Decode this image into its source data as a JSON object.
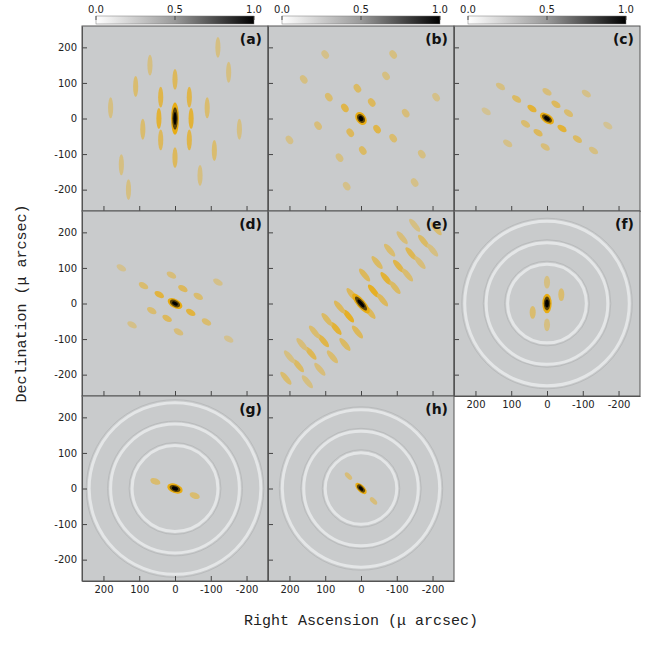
{
  "chart_data": {
    "type": "image",
    "xlabel": "Right Ascension (μ arcsec)",
    "ylabel": "Declination (μ arcsec)",
    "xlim": [
      260,
      -260
    ],
    "ylim": [
      -260,
      260
    ],
    "xticks": [
      200,
      100,
      0,
      -100,
      -200
    ],
    "yticks": [
      -200,
      -100,
      0,
      100,
      200
    ],
    "colorbar": {
      "range": [
        0,
        1
      ],
      "ticks": [
        {
          "value": 0,
          "label": "0.0"
        },
        {
          "value": 0.5,
          "label": "0.5"
        },
        {
          "value": 1,
          "label": "1.0"
        }
      ]
    },
    "panels": [
      {
        "label": "(a)",
        "beam": {
          "major": 90,
          "minor": 22,
          "pa": 0
        },
        "rings": [],
        "features": [
          {
            "x": -40,
            "y": 60,
            "value": 0.35
          },
          {
            "x": 40,
            "y": 60,
            "value": 0.35
          },
          {
            "x": -40,
            "y": -60,
            "value": 0.35
          },
          {
            "x": 40,
            "y": -60,
            "value": 0.3
          },
          {
            "x": -45,
            "y": 0,
            "value": 0.4
          },
          {
            "x": 45,
            "y": 0,
            "value": 0.4
          },
          {
            "x": 0,
            "y": 110,
            "value": 0.3
          },
          {
            "x": 0,
            "y": -110,
            "value": 0.3
          },
          {
            "x": -90,
            "y": 30,
            "value": 0.25
          },
          {
            "x": 90,
            "y": -30,
            "value": 0.25
          },
          {
            "x": -110,
            "y": -90,
            "value": 0.25
          },
          {
            "x": 110,
            "y": 90,
            "value": 0.25
          },
          {
            "x": -150,
            "y": 130,
            "value": 0.2
          },
          {
            "x": 150,
            "y": -130,
            "value": 0.2
          },
          {
            "x": 70,
            "y": 150,
            "value": 0.2
          },
          {
            "x": -70,
            "y": -160,
            "value": 0.2
          },
          {
            "x": 180,
            "y": 30,
            "value": 0.2
          },
          {
            "x": -180,
            "y": -30,
            "value": 0.2
          },
          {
            "x": -120,
            "y": 200,
            "value": 0.2
          },
          {
            "x": 130,
            "y": -200,
            "value": 0.2
          }
        ]
      },
      {
        "label": "(b)",
        "beam": {
          "major": 40,
          "minor": 28,
          "pa": 35
        },
        "rings": [],
        "features": [
          {
            "x": 45,
            "y": 30,
            "value": 0.35
          },
          {
            "x": -45,
            "y": -30,
            "value": 0.35
          },
          {
            "x": 30,
            "y": -40,
            "value": 0.3
          },
          {
            "x": -30,
            "y": 45,
            "value": 0.3
          },
          {
            "x": 90,
            "y": 60,
            "value": 0.25
          },
          {
            "x": -90,
            "y": -55,
            "value": 0.25
          },
          {
            "x": 10,
            "y": 85,
            "value": 0.28
          },
          {
            "x": -5,
            "y": -90,
            "value": 0.28
          },
          {
            "x": 120,
            "y": -20,
            "value": 0.22
          },
          {
            "x": -125,
            "y": 15,
            "value": 0.22
          },
          {
            "x": 60,
            "y": -110,
            "value": 0.2
          },
          {
            "x": -70,
            "y": 120,
            "value": 0.2
          },
          {
            "x": 160,
            "y": 110,
            "value": 0.2
          },
          {
            "x": -170,
            "y": -100,
            "value": 0.2
          },
          {
            "x": 200,
            "y": -60,
            "value": 0.18
          },
          {
            "x": -90,
            "y": 180,
            "value": 0.2
          },
          {
            "x": 100,
            "y": 180,
            "value": 0.18
          },
          {
            "x": -150,
            "y": -180,
            "value": 0.18
          },
          {
            "x": 40,
            "y": -190,
            "value": 0.18
          },
          {
            "x": -210,
            "y": 60,
            "value": 0.18
          }
        ]
      },
      {
        "label": "(c)",
        "beam": {
          "major": 45,
          "minor": 25,
          "pa": 55
        },
        "rings": [],
        "features": [
          {
            "x": 42,
            "y": 28,
            "value": 0.4
          },
          {
            "x": -42,
            "y": -28,
            "value": 0.4
          },
          {
            "x": 25,
            "y": -40,
            "value": 0.3
          },
          {
            "x": -25,
            "y": 40,
            "value": 0.3
          },
          {
            "x": 85,
            "y": 55,
            "value": 0.28
          },
          {
            "x": -85,
            "y": -58,
            "value": 0.28
          },
          {
            "x": 60,
            "y": -15,
            "value": 0.25
          },
          {
            "x": -60,
            "y": 15,
            "value": 0.25
          },
          {
            "x": 0,
            "y": 75,
            "value": 0.22
          },
          {
            "x": 5,
            "y": -80,
            "value": 0.22
          },
          {
            "x": 130,
            "y": 90,
            "value": 0.2
          },
          {
            "x": -130,
            "y": -90,
            "value": 0.2
          },
          {
            "x": 110,
            "y": -70,
            "value": 0.18
          },
          {
            "x": -110,
            "y": 70,
            "value": 0.18
          },
          {
            "x": 170,
            "y": 20,
            "value": 0.15
          },
          {
            "x": -170,
            "y": -20,
            "value": 0.15
          }
        ]
      },
      {
        "label": "(d)",
        "beam": {
          "major": 45,
          "minor": 25,
          "pa": 60
        },
        "rings": [],
        "features": [
          {
            "x": 44,
            "y": 25,
            "value": 0.38
          },
          {
            "x": -44,
            "y": -25,
            "value": 0.38
          },
          {
            "x": 22,
            "y": -42,
            "value": 0.3
          },
          {
            "x": -22,
            "y": 42,
            "value": 0.3
          },
          {
            "x": 88,
            "y": 50,
            "value": 0.25
          },
          {
            "x": -88,
            "y": -52,
            "value": 0.25
          },
          {
            "x": 65,
            "y": -20,
            "value": 0.25
          },
          {
            "x": -65,
            "y": 20,
            "value": 0.25
          },
          {
            "x": 10,
            "y": 80,
            "value": 0.22
          },
          {
            "x": -10,
            "y": -80,
            "value": 0.22
          },
          {
            "x": 120,
            "y": -60,
            "value": 0.18
          },
          {
            "x": -120,
            "y": 60,
            "value": 0.18
          },
          {
            "x": 150,
            "y": 100,
            "value": 0.16
          },
          {
            "x": -150,
            "y": -100,
            "value": 0.16
          }
        ]
      },
      {
        "label": "(e)",
        "beam": {
          "major": 70,
          "minor": 24,
          "pa": 40
        },
        "rings": [],
        "features": [
          {
            "x": -35,
            "y": 35,
            "value": 0.45
          },
          {
            "x": 35,
            "y": -35,
            "value": 0.45
          },
          {
            "x": -70,
            "y": 70,
            "value": 0.4
          },
          {
            "x": 70,
            "y": -70,
            "value": 0.4
          },
          {
            "x": -105,
            "y": 105,
            "value": 0.35
          },
          {
            "x": 105,
            "y": -105,
            "value": 0.35
          },
          {
            "x": -140,
            "y": 140,
            "value": 0.32
          },
          {
            "x": 140,
            "y": -140,
            "value": 0.32
          },
          {
            "x": -175,
            "y": 175,
            "value": 0.28
          },
          {
            "x": 175,
            "y": -175,
            "value": 0.28
          },
          {
            "x": -210,
            "y": 210,
            "value": 0.25
          },
          {
            "x": 210,
            "y": -210,
            "value": 0.25
          },
          {
            "x": 25,
            "y": 25,
            "value": 0.3
          },
          {
            "x": -25,
            "y": -25,
            "value": 0.3
          },
          {
            "x": -10,
            "y": 80,
            "value": 0.3
          },
          {
            "x": 10,
            "y": -80,
            "value": 0.3
          },
          {
            "x": -45,
            "y": 115,
            "value": 0.28
          },
          {
            "x": 45,
            "y": -115,
            "value": 0.28
          },
          {
            "x": -80,
            "y": 150,
            "value": 0.25
          },
          {
            "x": 80,
            "y": -150,
            "value": 0.25
          },
          {
            "x": -115,
            "y": 185,
            "value": 0.22
          },
          {
            "x": 115,
            "y": -185,
            "value": 0.22
          },
          {
            "x": -150,
            "y": 220,
            "value": 0.2
          },
          {
            "x": 150,
            "y": -220,
            "value": 0.2
          },
          {
            "x": -60,
            "y": 10,
            "value": 0.3
          },
          {
            "x": 60,
            "y": -10,
            "value": 0.3
          },
          {
            "x": -95,
            "y": 45,
            "value": 0.28
          },
          {
            "x": 95,
            "y": -45,
            "value": 0.28
          },
          {
            "x": -130,
            "y": 80,
            "value": 0.25
          },
          {
            "x": 130,
            "y": -80,
            "value": 0.25
          },
          {
            "x": -165,
            "y": 115,
            "value": 0.22
          },
          {
            "x": 165,
            "y": -115,
            "value": 0.22
          },
          {
            "x": -200,
            "y": 150,
            "value": 0.2
          },
          {
            "x": 200,
            "y": -150,
            "value": 0.2
          }
        ]
      },
      {
        "label": "(f)",
        "beam": {
          "major": 55,
          "minor": 26,
          "pa": 0
        },
        "rings": [
          110,
          170,
          230
        ],
        "features": [
          {
            "x": 40,
            "y": -25,
            "value": 0.25
          },
          {
            "x": -40,
            "y": 25,
            "value": 0.25
          },
          {
            "x": 0,
            "y": -60,
            "value": 0.2
          },
          {
            "x": 0,
            "y": 60,
            "value": 0.2
          }
        ]
      },
      {
        "label": "(g)",
        "beam": {
          "major": 45,
          "minor": 26,
          "pa": 70
        },
        "rings": [
          120,
          180,
          240
        ],
        "features": [
          {
            "x": 55,
            "y": 20,
            "value": 0.25
          },
          {
            "x": -55,
            "y": -20,
            "value": 0.25
          }
        ]
      },
      {
        "label": "(h)",
        "beam": {
          "major": 40,
          "minor": 20,
          "pa": 45
        },
        "rings": [
          100,
          160,
          220
        ],
        "features": [
          {
            "x": 35,
            "y": 35,
            "value": 0.22
          },
          {
            "x": -35,
            "y": -35,
            "value": 0.22
          }
        ]
      }
    ]
  }
}
